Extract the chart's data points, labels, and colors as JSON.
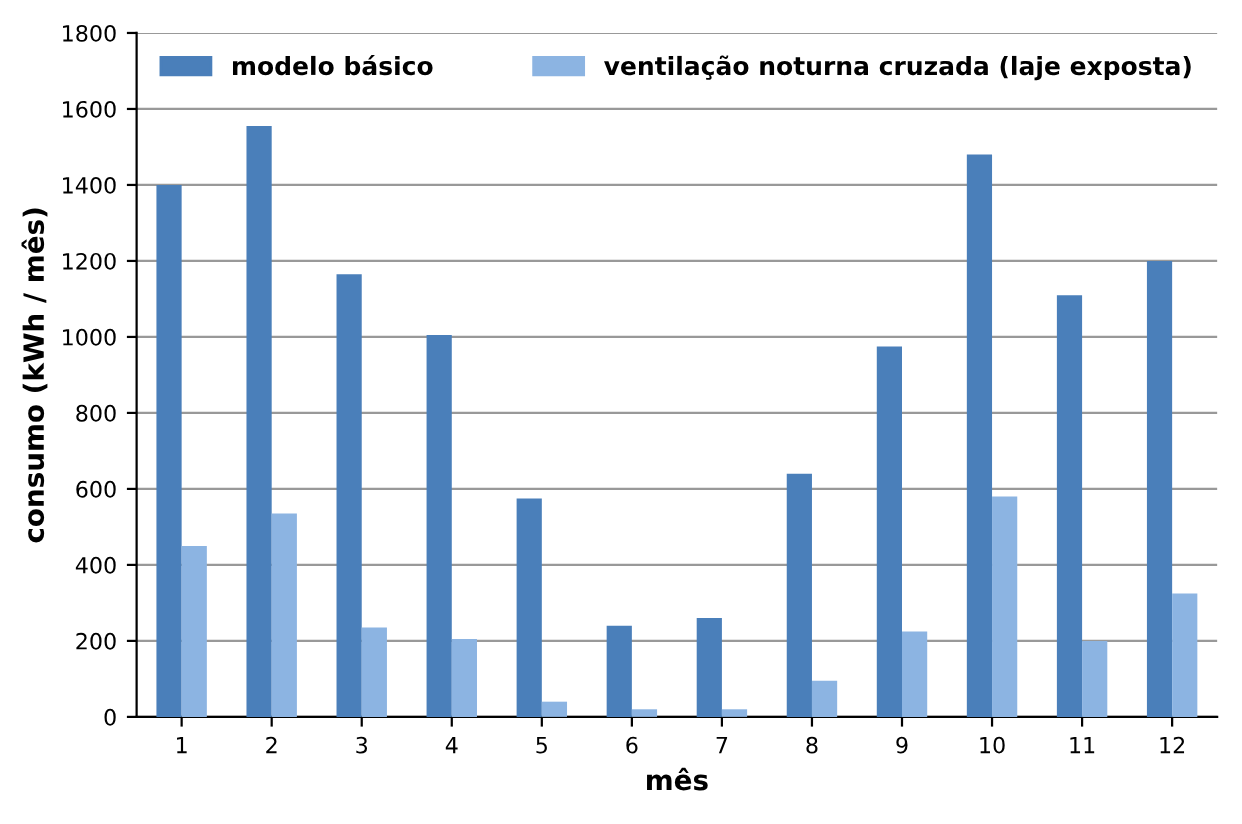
{
  "chart_data": {
    "type": "bar",
    "xlabel": "mês",
    "ylabel": "consumo (kWh / mês)",
    "categories": [
      "1",
      "2",
      "3",
      "4",
      "5",
      "6",
      "7",
      "8",
      "9",
      "10",
      "11",
      "12"
    ],
    "series": [
      {
        "name": "modelo básico",
        "color": "#4a7fba",
        "values": [
          1400,
          1555,
          1165,
          1005,
          575,
          240,
          260,
          640,
          975,
          1480,
          1110,
          1200
        ]
      },
      {
        "name": "ventilação noturna cruzada (laje exposta)",
        "color": "#8cb4e2",
        "values": [
          450,
          535,
          235,
          205,
          40,
          20,
          20,
          95,
          225,
          580,
          200,
          325
        ]
      }
    ],
    "ylim": [
      0,
      1800
    ],
    "yticks": [
      0,
      200,
      400,
      600,
      800,
      1000,
      1200,
      1400,
      1600,
      1800
    ],
    "grid": "y",
    "legend": "top"
  }
}
